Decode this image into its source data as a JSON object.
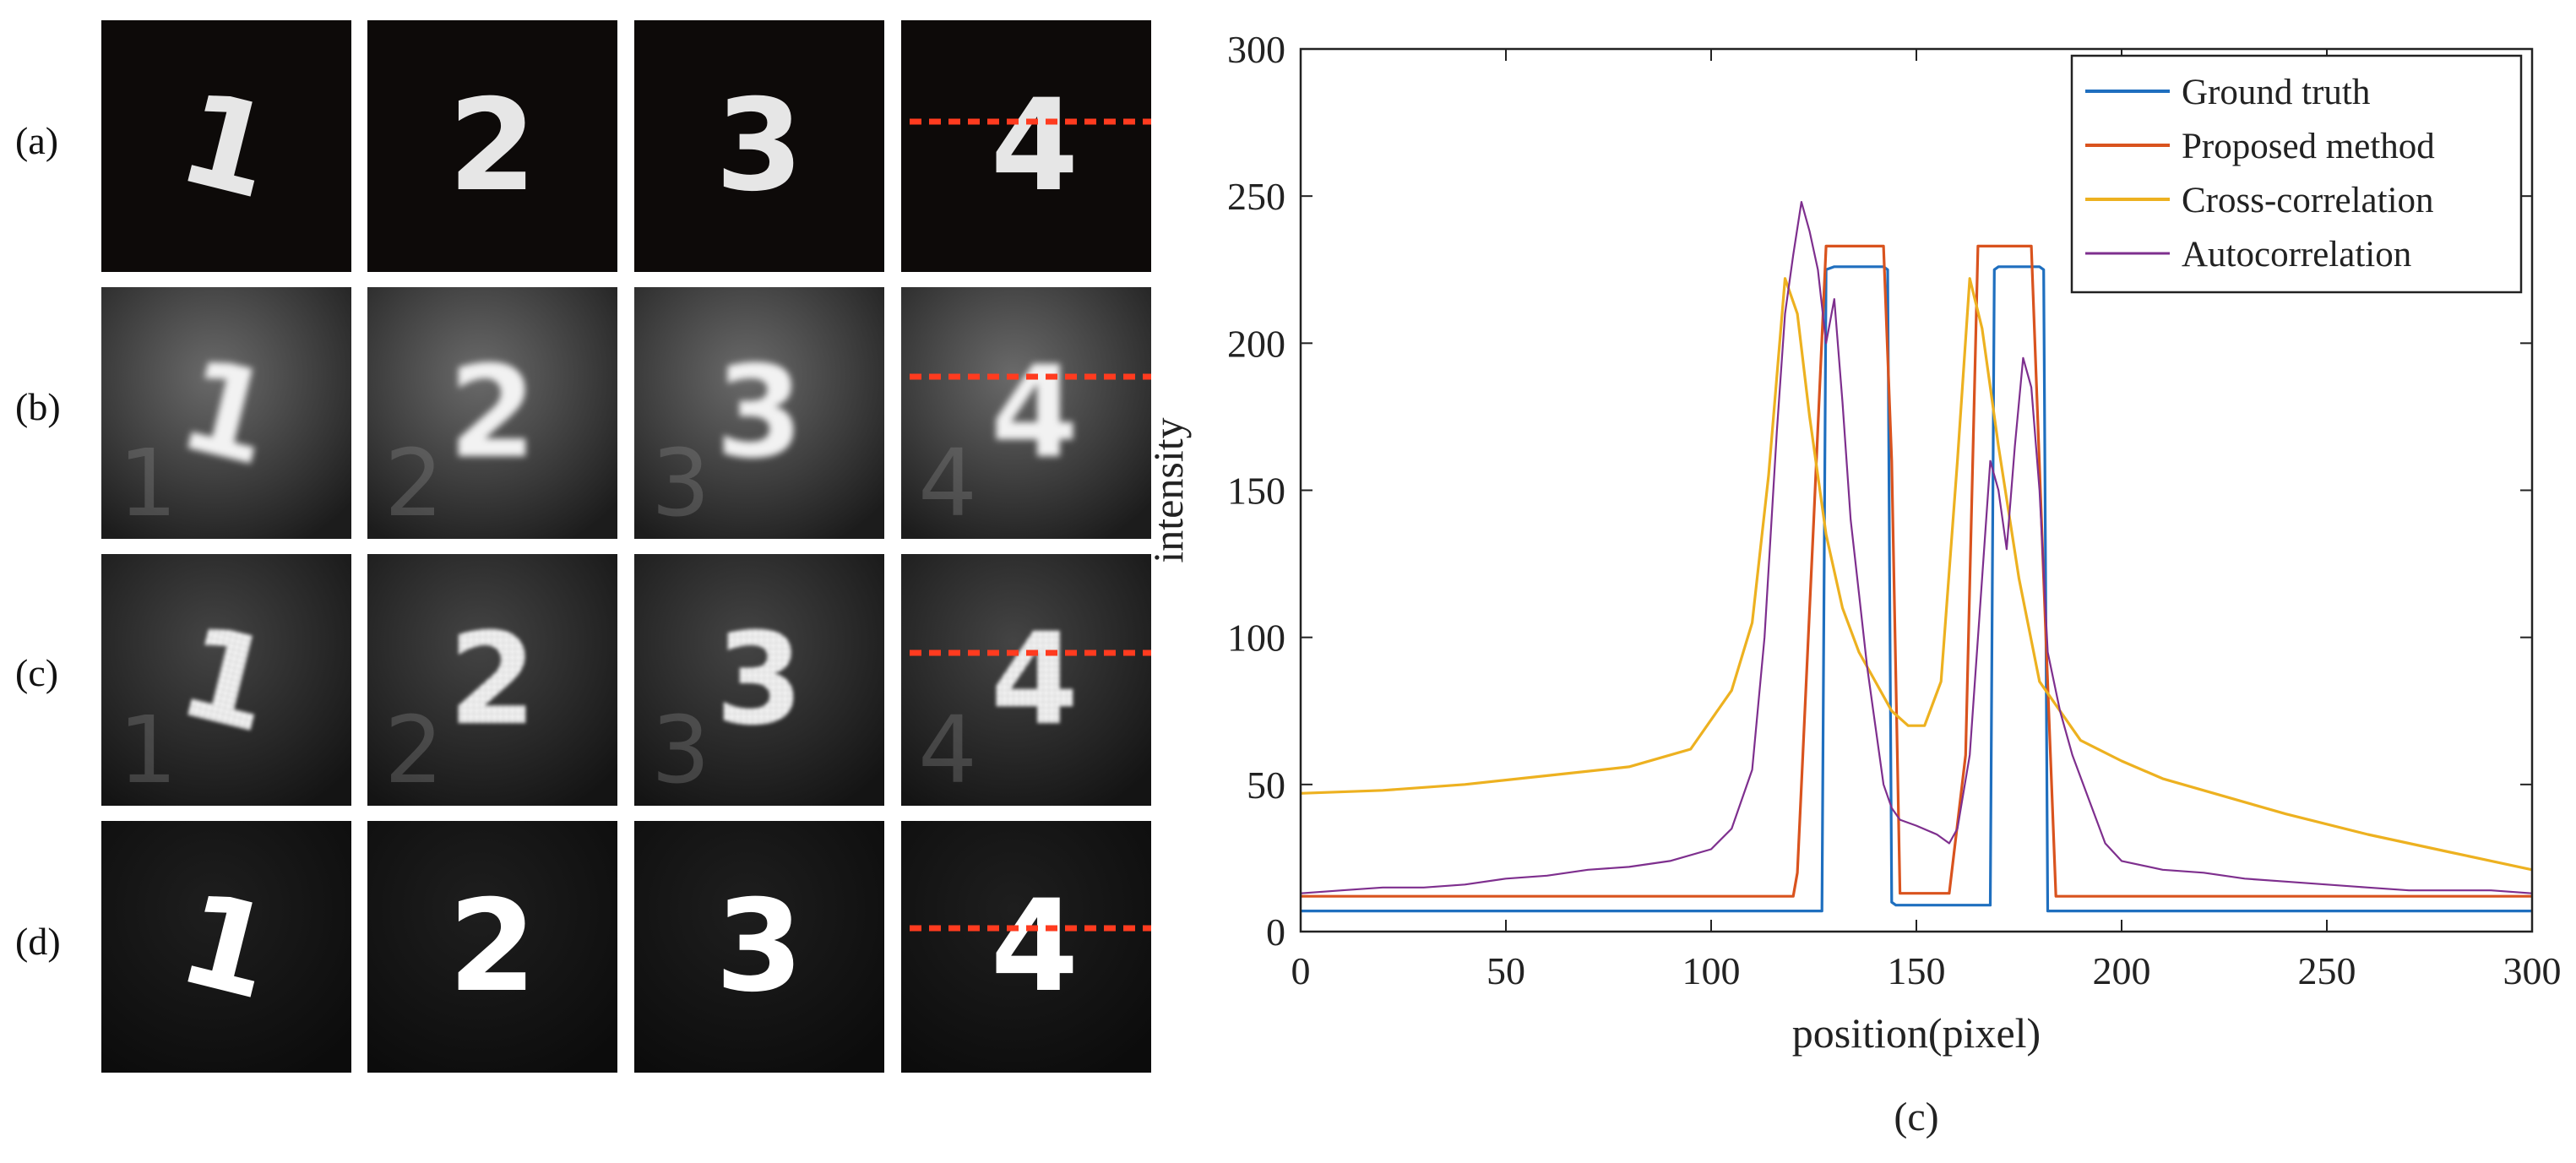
{
  "row_labels": [
    "(a)",
    "(b)",
    "(c)",
    "(d)"
  ],
  "digits": [
    "1",
    "2",
    "3",
    "4"
  ],
  "panel_label": "(c)",
  "chart_data": {
    "type": "line",
    "xlabel": "position(pixel)",
    "ylabel": "intensity",
    "xlim": [
      0,
      300
    ],
    "ylim": [
      0,
      300
    ],
    "xticks": [
      0,
      50,
      100,
      150,
      200,
      250,
      300
    ],
    "yticks": [
      0,
      50,
      100,
      150,
      200,
      250,
      300
    ],
    "legend_position": "top-right",
    "series": [
      {
        "name": "Ground truth",
        "color": "#1f6fbf",
        "width": 3.2,
        "x": [
          0,
          127,
          128,
          130,
          142,
          143,
          144,
          145,
          168,
          169,
          170,
          180,
          181,
          182,
          300
        ],
        "y": [
          7,
          7,
          225,
          226,
          226,
          225,
          10,
          9,
          9,
          225,
          226,
          226,
          225,
          7,
          7
        ]
      },
      {
        "name": "Proposed method",
        "color": "#d9531e",
        "width": 3.2,
        "x": [
          0,
          120,
          121,
          125,
          128,
          142,
          144,
          146,
          158,
          162,
          165,
          178,
          181,
          184,
          300
        ],
        "y": [
          12,
          12,
          20,
          140,
          233,
          233,
          160,
          13,
          13,
          60,
          233,
          233,
          120,
          12,
          12
        ]
      },
      {
        "name": "Cross-correlation",
        "color": "#edb120",
        "width": 3.2,
        "x": [
          0,
          20,
          40,
          60,
          80,
          95,
          105,
          110,
          114,
          118,
          121,
          124,
          128,
          132,
          136,
          140,
          144,
          148,
          152,
          156,
          160,
          163,
          166,
          170,
          175,
          180,
          190,
          200,
          210,
          225,
          240,
          260,
          280,
          300
        ],
        "y": [
          47,
          48,
          50,
          53,
          56,
          62,
          82,
          105,
          155,
          222,
          210,
          175,
          135,
          110,
          95,
          85,
          75,
          70,
          70,
          85,
          160,
          222,
          205,
          165,
          120,
          85,
          65,
          58,
          52,
          46,
          40,
          33,
          27,
          21
        ]
      },
      {
        "name": "Autocorrelation",
        "color": "#7e2f8e",
        "width": 2.2,
        "x": [
          0,
          10,
          20,
          30,
          40,
          50,
          60,
          70,
          80,
          90,
          100,
          105,
          110,
          113,
          116,
          118,
          120,
          122,
          124,
          126,
          128,
          130,
          132,
          134,
          136,
          138,
          140,
          142,
          144,
          146,
          150,
          155,
          158,
          160,
          163,
          166,
          168,
          170,
          172,
          174,
          176,
          178,
          180,
          182,
          185,
          188,
          192,
          196,
          200,
          210,
          220,
          230,
          240,
          250,
          260,
          270,
          280,
          290,
          300
        ],
        "y": [
          13,
          14,
          15,
          15,
          16,
          18,
          19,
          21,
          22,
          24,
          28,
          35,
          55,
          100,
          170,
          210,
          230,
          248,
          238,
          225,
          200,
          215,
          180,
          140,
          115,
          90,
          70,
          50,
          42,
          38,
          36,
          33,
          30,
          35,
          60,
          120,
          160,
          150,
          130,
          165,
          195,
          185,
          150,
          95,
          75,
          60,
          45,
          30,
          24,
          21,
          20,
          18,
          17,
          16,
          15,
          14,
          14,
          14,
          13
        ]
      }
    ]
  }
}
